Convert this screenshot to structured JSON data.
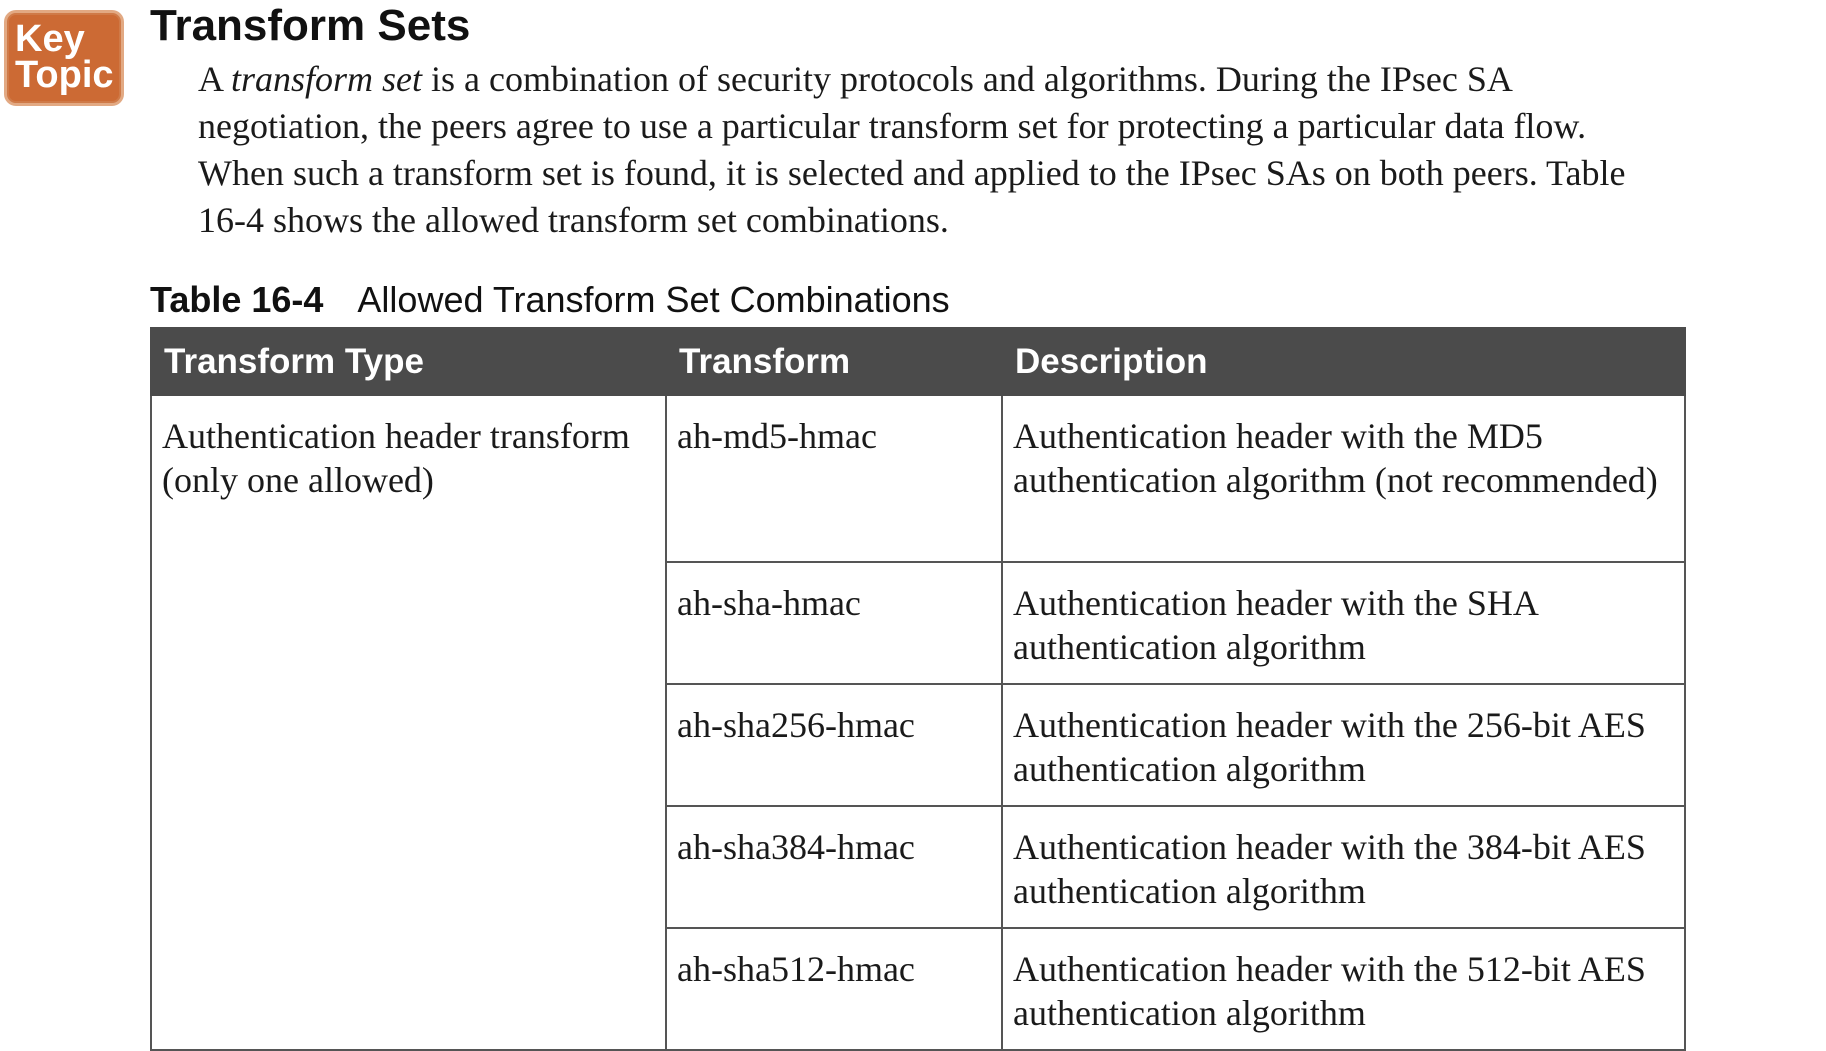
{
  "badge": {
    "line1": "Key",
    "line2": "Topic",
    "color": "#cc6a34"
  },
  "section": {
    "title": "Transform Sets",
    "intro": {
      "part1": "A ",
      "term": "transform set",
      "part2": " is a combination of security protocols and algorithms. During the IPsec SA negotiation, the peers agree to use a particular transform set for protecting a particular data flow. When such a transform set is found, it is selected and applied to the IPsec SAs on both peers. Table 16-4 shows the allowed transform set combinations."
    }
  },
  "table": {
    "caption_number": "Table 16-4",
    "caption_title": "Allowed Transform Set Combinations",
    "header_color": "#4b4b4b",
    "columns": [
      "Transform Type",
      "Transform",
      "Description"
    ],
    "transform_type": "Authentication header transform (only one allowed)",
    "rows": [
      {
        "transform": "ah-md5-hmac",
        "description": "Authentication header with the MD5 authentication algorithm (not recommended)"
      },
      {
        "transform": "ah-sha-hmac",
        "description": "Authentication header with the SHA authentication algorithm"
      },
      {
        "transform": "ah-sha256-hmac",
        "description": "Authentication header with the 256-bit AES authentication algorithm"
      },
      {
        "transform": "ah-sha384-hmac",
        "description": "Authentication header with the 384-bit AES authentication algorithm"
      },
      {
        "transform": "ah-sha512-hmac",
        "description": "Authentication header with the 512-bit AES authentication algorithm"
      }
    ]
  }
}
